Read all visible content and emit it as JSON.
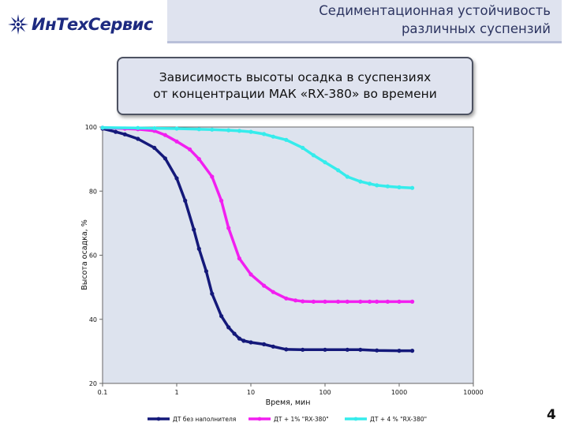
{
  "header": {
    "logo_text": "ИнТехСервис",
    "title_line1": "Седиментационная устойчивость",
    "title_line2": "различных суспензий"
  },
  "caption": {
    "line1": "Зависимость высоты осадка в суспензиях",
    "line2": "от концентрации МАК «RX-380» во времени"
  },
  "slide_number": "4",
  "chart_data": {
    "type": "line",
    "title": "",
    "xlabel": "Время, мин",
    "ylabel": "Высота осадка, %",
    "x_scale": "log",
    "xlim": [
      0.1,
      10000
    ],
    "ylim": [
      20,
      100
    ],
    "x_ticks": [
      0.1,
      1,
      10,
      100,
      1000,
      10000
    ],
    "x_tick_labels": [
      "0.1",
      "1",
      "10",
      "100",
      "1000",
      "10000"
    ],
    "y_ticks": [
      20,
      40,
      60,
      80,
      100
    ],
    "y_tick_labels": [
      "20",
      "40",
      "60",
      "80",
      "100"
    ],
    "grid": false,
    "legend_position": "bottom",
    "series": [
      {
        "name": "ДТ без наполнителя",
        "color": "#14197a",
        "x": [
          0.1,
          0.15,
          0.2,
          0.3,
          0.5,
          0.7,
          1,
          1.3,
          1.7,
          2,
          2.5,
          3,
          4,
          5,
          6,
          7,
          8,
          10,
          15,
          20,
          30,
          50,
          100,
          200,
          300,
          500,
          1000,
          1500
        ],
        "y": [
          99.5,
          98.5,
          97.7,
          96.3,
          93.5,
          90.2,
          84,
          77,
          68,
          62,
          55,
          48,
          41,
          37.5,
          35.5,
          34,
          33.3,
          32.8,
          32.2,
          31.5,
          30.6,
          30.5,
          30.5,
          30.5,
          30.5,
          30.3,
          30.2,
          30.2
        ]
      },
      {
        "name": "ДТ + 1% \"RX-380\"",
        "color": "#f21ff0",
        "x": [
          0.1,
          0.2,
          0.3,
          0.5,
          0.7,
          1,
          1.5,
          2,
          3,
          4,
          5,
          7,
          10,
          15,
          20,
          30,
          40,
          50,
          70,
          100,
          150,
          200,
          300,
          400,
          500,
          700,
          1000,
          1500
        ],
        "y": [
          99.8,
          99.5,
          99.3,
          98.8,
          97.5,
          95.5,
          93,
          90,
          84.5,
          77,
          68.5,
          59,
          54,
          50.5,
          48.5,
          46.5,
          45.9,
          45.6,
          45.5,
          45.5,
          45.5,
          45.5,
          45.5,
          45.5,
          45.5,
          45.5,
          45.5,
          45.5
        ]
      },
      {
        "name": "ДТ + 4 % \"RX-380\"",
        "color": "#35ecec",
        "x": [
          0.1,
          0.3,
          0.5,
          1,
          2,
          3,
          5,
          7,
          10,
          15,
          20,
          30,
          50,
          70,
          100,
          150,
          200,
          300,
          400,
          500,
          700,
          1000,
          1500
        ],
        "y": [
          99.8,
          99.7,
          99.6,
          99.5,
          99.3,
          99.2,
          99,
          98.8,
          98.5,
          97.8,
          97,
          96,
          93.5,
          91.2,
          89,
          86.5,
          84.5,
          83,
          82.3,
          81.8,
          81.5,
          81.2,
          81
        ]
      }
    ]
  }
}
